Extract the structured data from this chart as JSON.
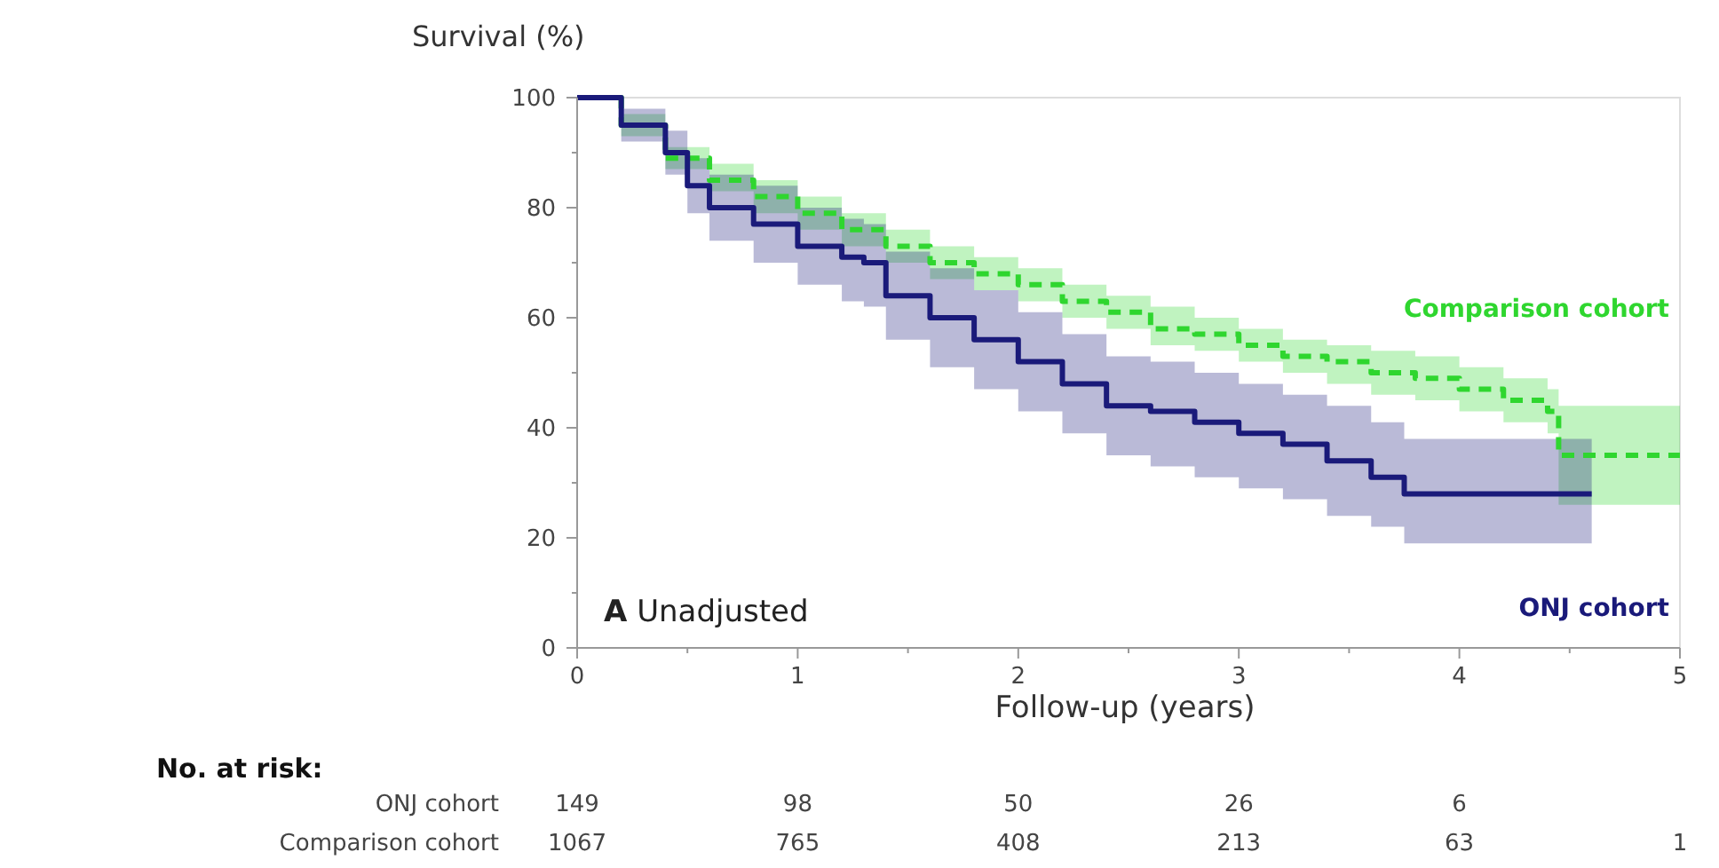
{
  "chart_data": {
    "type": "step",
    "ylabel": "Survival (%)",
    "xlabel": "Follow-up (years)",
    "xlim": [
      0,
      5
    ],
    "xticks": [
      0,
      {
        "value": 0.5,
        "label": null
      },
      1,
      {
        "value": 1.5,
        "label": null
      },
      2,
      {
        "value": 2.5,
        "label": null
      },
      3,
      {
        "value": 3.5,
        "label": null
      },
      4,
      {
        "value": 4.5,
        "label": null
      },
      5
    ],
    "ylim": [
      0,
      100
    ],
    "yticks": [
      0,
      {
        "value": 10,
        "label": null
      },
      20,
      {
        "value": 30,
        "label": null
      },
      40,
      {
        "value": 50,
        "label": null
      },
      60,
      {
        "value": 70,
        "label": null
      },
      80,
      {
        "value": 90,
        "label": null
      },
      100
    ],
    "grid": false,
    "series": [
      {
        "name": "Comparison cohort",
        "color": "#2fd62f",
        "line_style": "dashed",
        "x": [
          0,
          0.2,
          0.4,
          0.6,
          0.8,
          1.0,
          1.2,
          1.4,
          1.6,
          1.8,
          2.0,
          2.2,
          2.4,
          2.6,
          2.8,
          3.0,
          3.2,
          3.4,
          3.6,
          3.8,
          4.0,
          4.2,
          4.4,
          4.45,
          5.0
        ],
        "values": [
          100,
          95,
          89,
          85,
          82,
          79,
          76,
          73,
          70,
          68,
          66,
          63,
          61,
          58,
          57,
          55,
          53,
          52,
          50,
          49,
          47,
          45,
          43,
          35,
          35
        ],
        "lower": [
          100,
          93,
          87,
          83,
          79,
          76,
          73,
          70,
          67,
          65,
          63,
          60,
          58,
          55,
          54,
          52,
          50,
          48,
          46,
          45,
          43,
          41,
          39,
          26,
          26
        ],
        "upper": [
          100,
          97,
          91,
          88,
          85,
          82,
          79,
          76,
          73,
          71,
          69,
          66,
          64,
          62,
          60,
          58,
          56,
          55,
          54,
          53,
          51,
          49,
          47,
          44,
          44
        ]
      },
      {
        "name": "ONJ cohort",
        "color": "#1a1a7a",
        "line_style": "solid",
        "x": [
          0,
          0.2,
          0.4,
          0.5,
          0.6,
          0.8,
          1.0,
          1.2,
          1.3,
          1.4,
          1.6,
          1.8,
          2.0,
          2.2,
          2.4,
          2.6,
          2.8,
          3.0,
          3.2,
          3.4,
          3.6,
          3.75,
          4.6
        ],
        "values": [
          100,
          95,
          90,
          84,
          80,
          77,
          73,
          71,
          70,
          64,
          60,
          56,
          52,
          48,
          44,
          43,
          41,
          39,
          37,
          34,
          31,
          28,
          28
        ],
        "lower": [
          100,
          92,
          86,
          79,
          74,
          70,
          66,
          63,
          62,
          56,
          51,
          47,
          43,
          39,
          35,
          33,
          31,
          29,
          27,
          24,
          22,
          19,
          19
        ],
        "upper": [
          100,
          98,
          94,
          89,
          86,
          84,
          80,
          78,
          77,
          72,
          69,
          65,
          61,
          57,
          53,
          52,
          50,
          48,
          46,
          44,
          41,
          38,
          38
        ]
      }
    ],
    "annotations": [
      "A Unadjusted",
      "No. at risk:",
      "ONJ cohort",
      "149",
      "98",
      "50",
      "26",
      "6",
      "Comparison cohort",
      "1067",
      "765",
      "408",
      "213",
      "63",
      "1"
    ]
  }
}
